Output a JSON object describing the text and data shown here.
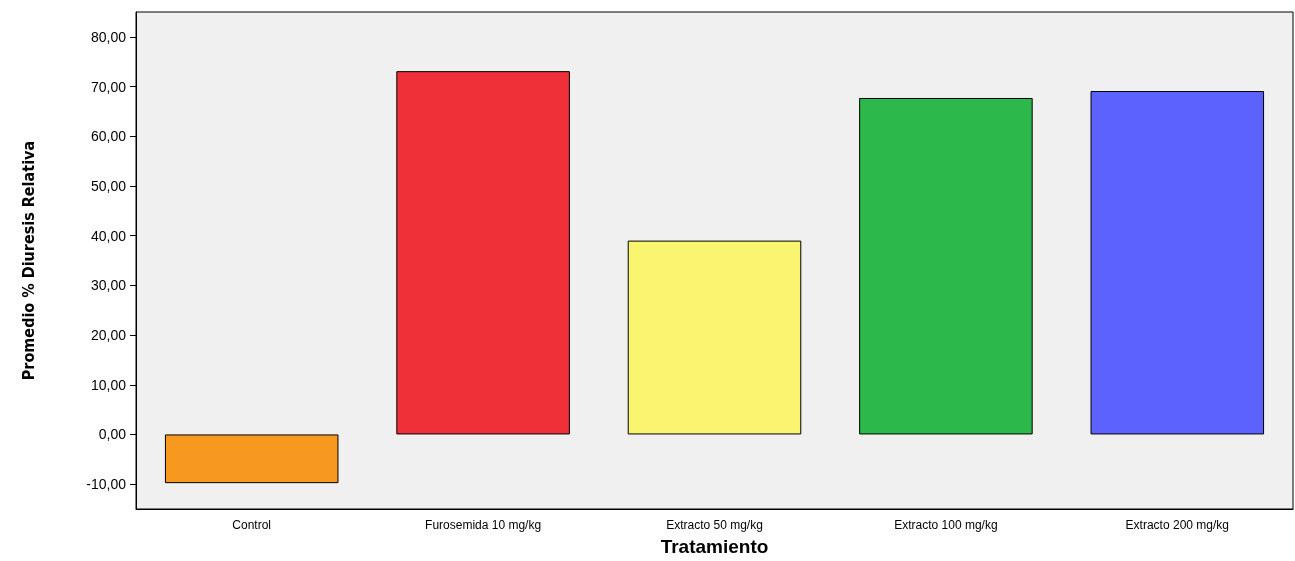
{
  "chart_data": {
    "type": "bar",
    "xlabel": "Tratamiento",
    "ylabel": "Promedio % Diuresis Relativa",
    "categories": [
      "Control",
      "Furosemida 10 mg/kg",
      "Extracto 50 mg/kg",
      "Extracto 100 mg/kg",
      "Extracto 200 mg/kg"
    ],
    "values": [
      -9.8,
      73.1,
      39.0,
      67.7,
      69.1
    ],
    "colors": [
      "#f7991f",
      "#ef3038",
      "#f9f56f",
      "#2db84b",
      "#5c62fe"
    ],
    "ylim": [
      -15,
      85
    ],
    "yticks": [
      {
        "value": -10,
        "label": "-10,00"
      },
      {
        "value": 0,
        "label": "0,00"
      },
      {
        "value": 10,
        "label": "10,00"
      },
      {
        "value": 20,
        "label": "20,00"
      },
      {
        "value": 30,
        "label": "30,00"
      },
      {
        "value": 40,
        "label": "40,00"
      },
      {
        "value": 50,
        "label": "50,00"
      },
      {
        "value": 60,
        "label": "60,00"
      },
      {
        "value": 70,
        "label": "70,00"
      },
      {
        "value": 80,
        "label": "80,00"
      }
    ],
    "grid": false
  }
}
